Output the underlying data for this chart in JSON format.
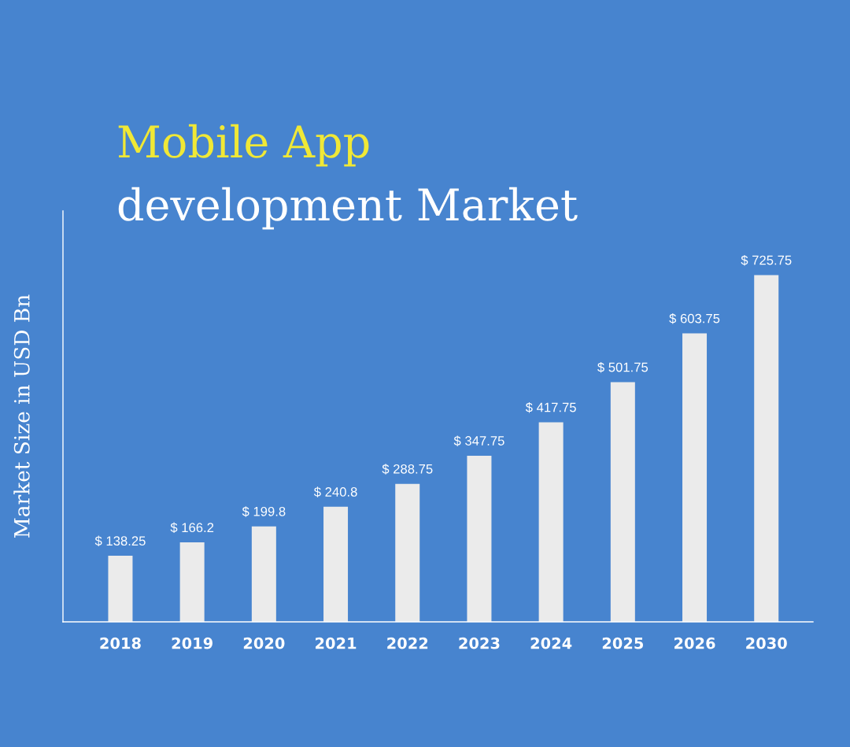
{
  "chart_data": {
    "type": "bar",
    "title": "Mobile App\ndevelopment Market",
    "ylabel": "Market Size in USD Bn",
    "categories": [
      "2018",
      "2019",
      "2020",
      "2021",
      "2022",
      "2023",
      "2024",
      "2025",
      "2026",
      "2030"
    ],
    "values": [
      138.25,
      166.2,
      199.8,
      240.8,
      288.75,
      347.75,
      417.75,
      501.75,
      603.75,
      725.75
    ],
    "value_labels": [
      "$ 138.25",
      "$ 166.2",
      "$ 199.8",
      "$ 240.8",
      "$ 288.75",
      "$ 347.75",
      "$ 417.75",
      "$ 501.75",
      "$ 603.75",
      "$ 725.75"
    ],
    "color": "#ebebeb",
    "ylim": [
      0,
      860
    ],
    "tick_labels": "x"
  }
}
